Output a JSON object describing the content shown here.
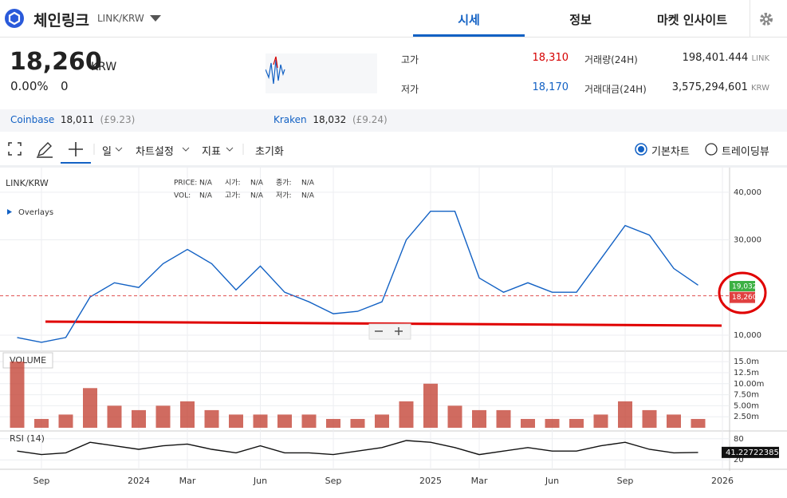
{
  "header": {
    "title": "체인링크",
    "pair": "LINK/KRW",
    "tabs": [
      "시세",
      "정보",
      "마켓 인사이트"
    ]
  },
  "ticker": {
    "price": "18,260",
    "unit": "KRW",
    "change_rate": "0.00%",
    "change": "0",
    "high_label": "고가",
    "high": "18,310",
    "low_label": "저가",
    "low": "18,170",
    "volume_label": "거래량(24H)",
    "volume": "198,401.444",
    "volume_unit": "LINK",
    "value_label": "거래대금(24H)",
    "value": "3,575,294,601",
    "value_unit": "KRW"
  },
  "exchanges": [
    {
      "name": "Coinbase",
      "price": "18,011",
      "sub": "(£9.23)"
    },
    {
      "name": "Kraken",
      "price": "18,032",
      "sub": "(£9.24)"
    }
  ],
  "toolbar": {
    "interval": "일",
    "settings": "차트설정",
    "indicators": "지표",
    "reset": "초기화",
    "modes": [
      "기본차트",
      "트레이딩뷰"
    ]
  },
  "chart_data": [
    {
      "type": "line",
      "title": "LINK/KRW",
      "overlays": "Overlays",
      "info": [
        {
          "label": "PRICE:",
          "value": "N/A"
        },
        {
          "label": "시가:",
          "value": "N/A"
        },
        {
          "label": "종가:",
          "value": "N/A"
        },
        {
          "label": "VOL:",
          "value": "N/A"
        },
        {
          "label": "고가:",
          "value": "N/A"
        },
        {
          "label": "저가:",
          "value": "N/A"
        }
      ],
      "x": [
        "2023-08",
        "2023-09",
        "2023-10",
        "2023-11",
        "2023-12",
        "2024-01",
        "2024-02",
        "2024-03",
        "2024-04",
        "2024-05",
        "2024-06",
        "2024-07",
        "2024-08",
        "2024-09",
        "2024-10",
        "2024-11",
        "2024-12",
        "2025-01",
        "2025-02",
        "2025-03",
        "2025-04",
        "2025-05",
        "2025-06",
        "2025-07",
        "2025-08",
        "2025-09",
        "2025-10",
        "2025-11",
        "2025-12"
      ],
      "xlim": [
        "2023-08",
        "2026-01"
      ],
      "series": [
        {
          "name": "LINK/KRW",
          "color": "#1261c4",
          "values": [
            9500,
            8500,
            9500,
            18000,
            21000,
            20000,
            25000,
            28000,
            25000,
            19500,
            24500,
            19000,
            17000,
            14500,
            15000,
            17000,
            30000,
            36000,
            36000,
            22000,
            19000,
            21000,
            19000,
            19000,
            26000,
            33000,
            31000,
            24000,
            20500
          ]
        }
      ],
      "ylim": [
        6640,
        45170
      ],
      "yticks": [
        {
          "value": 10000,
          "label": "10,000"
        },
        {
          "value": 30000,
          "label": "30,000"
        },
        {
          "value": 40000,
          "label": "40,000"
        }
      ],
      "current": {
        "value": 18260,
        "label": "18,260"
      },
      "ma": {
        "value": 19032,
        "label": "19,032"
      }
    },
    {
      "type": "bar",
      "title": "VOLUME",
      "x": [
        "2023-08",
        "2023-09",
        "2023-10",
        "2023-11",
        "2023-12",
        "2024-01",
        "2024-02",
        "2024-03",
        "2024-04",
        "2024-05",
        "2024-06",
        "2024-07",
        "2024-08",
        "2024-09",
        "2024-10",
        "2024-11",
        "2024-12",
        "2025-01",
        "2025-02",
        "2025-03",
        "2025-04",
        "2025-05",
        "2025-06",
        "2025-07",
        "2025-08",
        "2025-09",
        "2025-10",
        "2025-11",
        "2025-12"
      ],
      "xlim": [
        "2023-08",
        "2026-01"
      ],
      "series": [
        {
          "name": "VOLUME",
          "color": "#c0392b",
          "values": [
            15,
            2,
            3,
            9,
            5,
            4,
            5,
            6,
            4,
            3,
            3,
            3,
            3,
            2,
            2,
            3,
            6,
            10,
            5,
            4,
            4,
            2,
            2,
            2,
            3,
            6,
            4,
            3,
            2
          ]
        }
      ],
      "ylim": [
        0,
        17.2
      ],
      "yticks": [
        {
          "value": 2.5,
          "label": "2.50m"
        },
        {
          "value": 5,
          "label": "5.00m"
        },
        {
          "value": 7.5,
          "label": "7.50m"
        },
        {
          "value": 10,
          "label": "10.00m"
        },
        {
          "value": 12.5,
          "label": "12.5m"
        },
        {
          "value": 15,
          "label": "15.0m"
        }
      ]
    },
    {
      "type": "line",
      "title": "RSI (14)",
      "x": [
        "2023-08",
        "2023-09",
        "2023-10",
        "2023-11",
        "2023-12",
        "2024-01",
        "2024-02",
        "2024-03",
        "2024-04",
        "2024-05",
        "2024-06",
        "2024-07",
        "2024-08",
        "2024-09",
        "2024-10",
        "2024-11",
        "2024-12",
        "2025-01",
        "2025-02",
        "2025-03",
        "2025-04",
        "2025-05",
        "2025-06",
        "2025-07",
        "2025-08",
        "2025-09",
        "2025-10",
        "2025-11",
        "2025-12"
      ],
      "xlim": [
        "2023-08",
        "2026-01"
      ],
      "series": [
        {
          "name": "RSI (14)",
          "color": "#111111",
          "values": [
            45,
            35,
            40,
            70,
            60,
            50,
            60,
            65,
            50,
            40,
            60,
            40,
            40,
            35,
            45,
            55,
            75,
            70,
            55,
            35,
            45,
            55,
            45,
            45,
            60,
            70,
            50,
            40,
            41.22722385
          ]
        }
      ],
      "ylim": [
        0,
        100
      ],
      "yticks": [
        20,
        80
      ],
      "xticks": [
        {
          "value": "2023-09",
          "label": "Sep"
        },
        {
          "value": "2024-01",
          "label": "2024"
        },
        {
          "value": "2024-03",
          "label": "Mar"
        },
        {
          "value": "2024-06",
          "label": "Jun"
        },
        {
          "value": "2024-09",
          "label": "Sep"
        },
        {
          "value": "2025-01",
          "label": "2025"
        },
        {
          "value": "2025-03",
          "label": "Mar"
        },
        {
          "value": "2025-06",
          "label": "Jun"
        },
        {
          "value": "2025-09",
          "label": "Sep"
        },
        {
          "value": "2026-01",
          "label": "2026"
        }
      ]
    }
  ]
}
